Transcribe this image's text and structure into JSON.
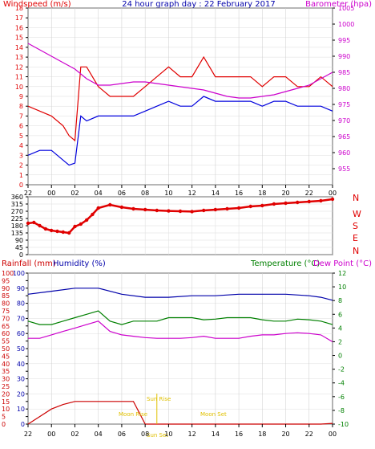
{
  "header": {
    "left_label": "Windspeed (m/s)",
    "title": "24 hour graph day : 22 February 2017",
    "right_label": "Barometer (hpa)"
  },
  "middle": {
    "compass": [
      "N",
      "W",
      "S",
      "E",
      "N"
    ]
  },
  "bottom_header": {
    "rainfall_label": "Rainfall (mm)",
    "humidity_label": "Humidity (%)",
    "temperature_label": "Temperature (°C)",
    "dewpoint_label": "Dew Point (°C)"
  },
  "annotations": {
    "sun_rise": "Sun Rise",
    "sun_set": "Sun Set",
    "moon_rise": "Moon Rise",
    "moon_set": "Moon Set"
  },
  "colors": {
    "wind_gust": "#e00000",
    "wind_avg": "#0000dd",
    "barometer": "#cc00cc",
    "direction": "#e00000",
    "humidity": "#0000aa",
    "temperature": "#008000",
    "dewpoint": "#cc00cc",
    "rain": "#cc0000",
    "annot": "#e0c000"
  },
  "chart_data": [
    {
      "type": "line",
      "title": "24 hour graph day : 22 February 2017",
      "xlabel": "",
      "x_ticks": [
        "22",
        "00",
        "02",
        "04",
        "06",
        "08",
        "10",
        "12",
        "14",
        "16",
        "18",
        "20",
        "22",
        "00"
      ],
      "y_left": {
        "label": "Windspeed (m/s)",
        "range": [
          0,
          18
        ],
        "ticks": [
          0,
          1,
          2,
          3,
          4,
          5,
          6,
          7,
          8,
          9,
          10,
          11,
          12,
          13,
          14,
          15,
          16,
          17,
          18
        ]
      },
      "y_right": {
        "label": "Barometer (hpa)",
        "range": [
          950,
          1005
        ],
        "ticks": [
          955,
          960,
          965,
          970,
          975,
          980,
          985,
          990,
          995,
          1000,
          1005
        ]
      },
      "series": [
        {
          "name": "Windspeed (m/s)",
          "axis": "left",
          "x_hours": [
            0,
            1,
            2,
            3,
            3.5,
            4,
            4.5,
            5,
            6,
            7,
            8,
            9,
            10,
            11,
            12,
            13,
            14,
            15,
            16,
            17,
            18,
            19,
            20,
            21,
            22,
            23,
            24,
            25,
            26
          ],
          "values": [
            8,
            7.5,
            7,
            6,
            5,
            4.5,
            12,
            12,
            10,
            9,
            9,
            9,
            10,
            11,
            12,
            11,
            11,
            13,
            11,
            11,
            11,
            11,
            10,
            11,
            11,
            10,
            10,
            11,
            10
          ]
        },
        {
          "name": "",
          "axis": "left",
          "x_hours": [
            0,
            1,
            2,
            3,
            3.5,
            4,
            4.5,
            5,
            6,
            7,
            8,
            9,
            10,
            11,
            12,
            13,
            14,
            15,
            16,
            17,
            18,
            19,
            20,
            21,
            22,
            23,
            24,
            25,
            26
          ],
          "values": [
            3,
            3.5,
            3.5,
            2.5,
            2,
            2.2,
            7,
            6.5,
            7,
            7,
            7,
            7,
            7.5,
            8,
            8.5,
            8,
            8,
            9,
            8.5,
            8.5,
            8.5,
            8.5,
            8,
            8.5,
            8.5,
            8,
            8,
            8,
            7.5
          ]
        },
        {
          "name": "Barometer (hpa)",
          "axis": "right",
          "x_hours": [
            0,
            1,
            2,
            3,
            4,
            5,
            6,
            7,
            8,
            9,
            10,
            11,
            12,
            13,
            14,
            15,
            16,
            17,
            18,
            19,
            20,
            21,
            22,
            23,
            24,
            25,
            26
          ],
          "values": [
            994,
            992,
            990,
            988,
            986,
            983,
            981,
            981,
            981.5,
            982,
            982,
            981.5,
            981,
            980.5,
            980,
            979.5,
            978.5,
            977.5,
            977,
            977,
            977.5,
            978,
            979,
            980,
            981,
            983,
            985
          ]
        }
      ]
    },
    {
      "type": "scatter",
      "title": "",
      "y_ticks": [
        0,
        45,
        90,
        135,
        180,
        225,
        270,
        315,
        360
      ],
      "series": [
        {
          "name": "",
          "x_hours": [
            0,
            0.5,
            1,
            1.5,
            2,
            2.5,
            3,
            3.5,
            4,
            4.5,
            5,
            5.5,
            6,
            7,
            8,
            9,
            10,
            11,
            12,
            13,
            14,
            15,
            16,
            17,
            18,
            19,
            20,
            21,
            22,
            23,
            24,
            25,
            26
          ],
          "values": [
            195,
            200,
            180,
            160,
            150,
            145,
            140,
            135,
            175,
            190,
            215,
            250,
            290,
            310,
            295,
            285,
            280,
            275,
            272,
            270,
            268,
            275,
            280,
            285,
            290,
            300,
            305,
            315,
            320,
            325,
            330,
            335,
            345
          ]
        }
      ]
    },
    {
      "type": "line",
      "title": "",
      "y_left": {
        "label": "Rainfall (mm)",
        "range": [
          0,
          100
        ],
        "ticks": [
          0,
          5,
          10,
          15,
          20,
          25,
          30,
          35,
          40,
          45,
          50,
          55,
          60,
          65,
          70,
          75,
          80,
          85,
          90,
          95,
          100
        ]
      },
      "y_left2": {
        "label": "Humidity (%)",
        "range": [
          0,
          100
        ],
        "ticks": [
          0,
          10,
          20,
          30,
          40,
          50,
          60,
          70,
          80,
          90,
          100
        ]
      },
      "y_right": {
        "label": "Temperature (°C)",
        "range": [
          -10,
          12
        ],
        "ticks": [
          -10,
          -8,
          -6,
          -4,
          -2,
          0,
          2,
          4,
          6,
          8,
          10,
          12
        ]
      },
      "y_right2": {
        "label": "Dew Point (°C)",
        "range": [
          -10,
          12
        ],
        "ticks": [
          -10,
          -8,
          -6,
          -4,
          -2,
          0,
          2,
          4,
          6,
          8,
          10,
          12
        ]
      },
      "series": [
        {
          "name": "Humidity (%)",
          "axis": "left",
          "x_hours": [
            0,
            2,
            4,
            6,
            8,
            10,
            12,
            14,
            16,
            18,
            20,
            22,
            24,
            25,
            26
          ],
          "values": [
            86,
            88,
            90,
            90,
            86,
            84,
            84,
            85,
            85,
            86,
            86,
            86,
            85,
            84,
            82
          ]
        },
        {
          "name": "Temperature (°C)",
          "axis": "right",
          "x_hours": [
            0,
            1,
            2,
            3,
            4,
            5,
            6,
            7,
            8,
            9,
            10,
            11,
            12,
            13,
            14,
            15,
            16,
            17,
            18,
            19,
            20,
            21,
            22,
            23,
            24,
            25,
            26
          ],
          "values": [
            5,
            4.5,
            4.5,
            5,
            5.5,
            6,
            6.5,
            5,
            4.5,
            5,
            5,
            5,
            5.5,
            5.5,
            5.5,
            5.2,
            5.3,
            5.5,
            5.5,
            5.5,
            5.2,
            5,
            5,
            5.3,
            5.2,
            5,
            4.5
          ]
        },
        {
          "name": "Dew Point (°C)",
          "axis": "right",
          "x_hours": [
            0,
            1,
            2,
            3,
            4,
            5,
            6,
            7,
            8,
            9,
            10,
            11,
            12,
            13,
            14,
            15,
            16,
            17,
            18,
            19,
            20,
            21,
            22,
            23,
            24,
            25,
            26
          ],
          "values": [
            2.5,
            2.5,
            3,
            3.5,
            4,
            4.5,
            5,
            3.5,
            3,
            2.8,
            2.6,
            2.5,
            2.5,
            2.5,
            2.6,
            2.8,
            2.5,
            2.5,
            2.5,
            2.8,
            3,
            3,
            3.2,
            3.3,
            3.2,
            3,
            2
          ]
        },
        {
          "name": "Rainfall (mm)",
          "axis": "left",
          "x_hours": [
            0,
            1,
            2,
            3,
            4,
            5,
            6,
            7,
            8,
            9,
            10,
            11,
            12,
            13,
            14,
            15,
            16,
            17,
            18,
            19,
            20,
            21,
            22,
            23,
            24,
            25,
            26
          ],
          "values": [
            0,
            5,
            10,
            13,
            15,
            15,
            15,
            15,
            15,
            15,
            0,
            0,
            0,
            0,
            0,
            0,
            0,
            0,
            0,
            0,
            0,
            0,
            0,
            0,
            0,
            0,
            0.5
          ]
        }
      ]
    }
  ]
}
